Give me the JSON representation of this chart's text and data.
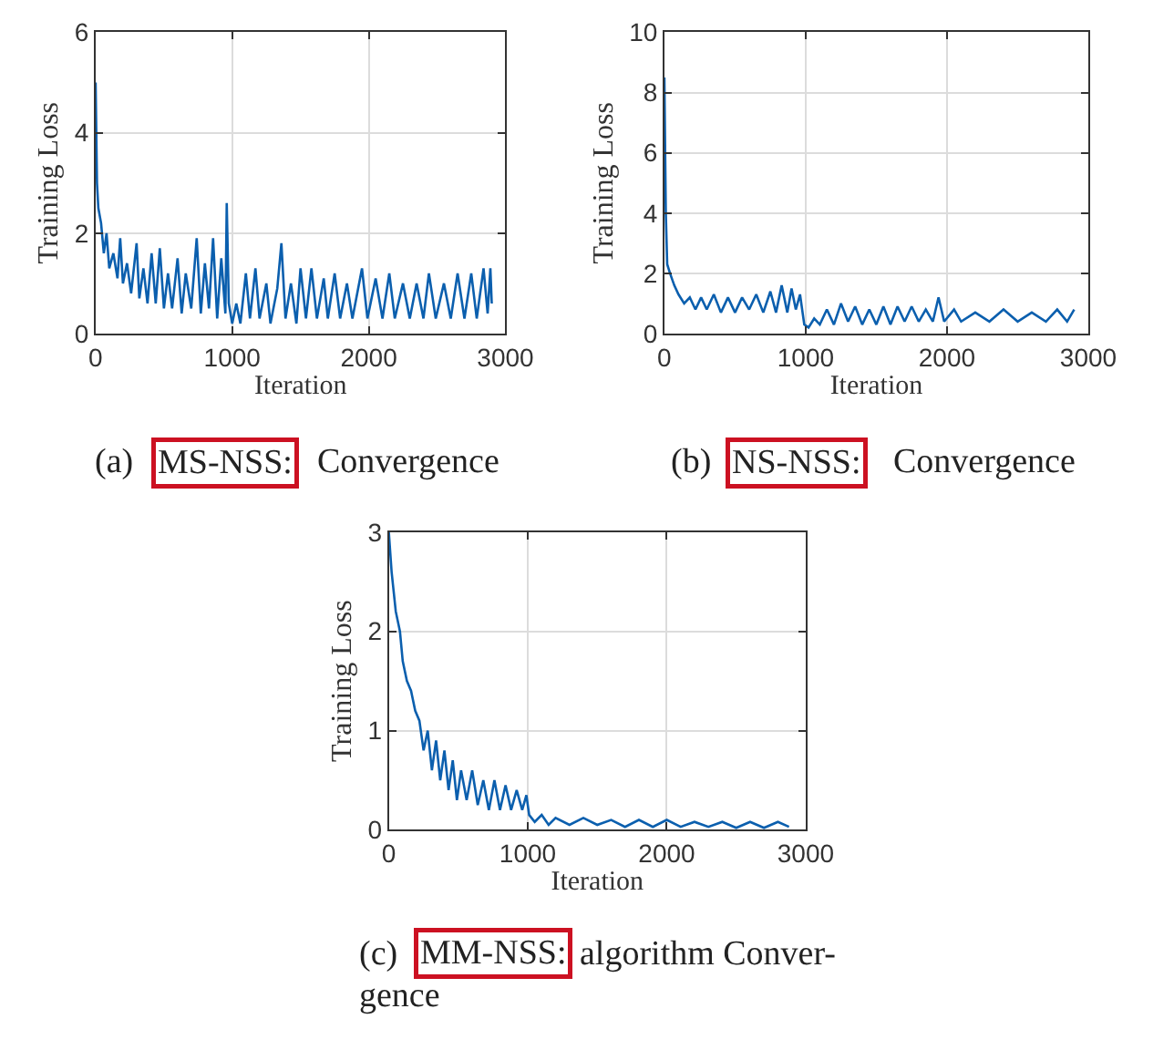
{
  "chart_data": [
    {
      "type": "line",
      "xlabel": "Iteration",
      "ylabel": "Training Loss",
      "color": "#0b5fae",
      "grid": true,
      "xlim": [
        0,
        3000
      ],
      "ylim": [
        0,
        6
      ],
      "xticks": [
        0,
        1000,
        2000,
        3000
      ],
      "yticks": [
        0,
        2,
        4,
        6
      ],
      "x": [
        0,
        10,
        20,
        40,
        60,
        80,
        100,
        130,
        160,
        180,
        200,
        230,
        260,
        300,
        320,
        350,
        380,
        410,
        440,
        470,
        500,
        530,
        560,
        600,
        630,
        660,
        700,
        740,
        770,
        800,
        830,
        860,
        890,
        920,
        950,
        960,
        975,
        1000,
        1030,
        1060,
        1100,
        1130,
        1170,
        1200,
        1250,
        1280,
        1330,
        1360,
        1390,
        1430,
        1470,
        1500,
        1540,
        1580,
        1620,
        1670,
        1700,
        1750,
        1790,
        1840,
        1880,
        1950,
        1990,
        2050,
        2100,
        2150,
        2190,
        2250,
        2300,
        2350,
        2400,
        2440,
        2490,
        2550,
        2600,
        2650,
        2700,
        2750,
        2790,
        2840,
        2870,
        2890,
        2900
      ],
      "values": [
        5.0,
        3.0,
        2.5,
        2.2,
        1.6,
        2.0,
        1.3,
        1.6,
        1.1,
        1.9,
        1.0,
        1.4,
        0.8,
        1.8,
        0.7,
        1.3,
        0.6,
        1.6,
        0.6,
        1.7,
        0.5,
        1.2,
        0.5,
        1.5,
        0.4,
        1.2,
        0.5,
        1.9,
        0.4,
        1.4,
        0.5,
        1.9,
        0.3,
        1.5,
        0.4,
        2.6,
        0.6,
        0.2,
        0.6,
        0.2,
        1.2,
        0.3,
        1.3,
        0.3,
        1.0,
        0.2,
        0.9,
        1.8,
        0.3,
        1.0,
        0.2,
        1.3,
        0.3,
        1.3,
        0.3,
        1.1,
        0.3,
        1.2,
        0.3,
        1.0,
        0.3,
        1.3,
        0.3,
        1.1,
        0.3,
        1.2,
        0.3,
        1.0,
        0.3,
        1.0,
        0.3,
        1.2,
        0.3,
        1.0,
        0.3,
        1.2,
        0.3,
        1.2,
        0.3,
        1.3,
        0.4,
        1.3,
        0.6
      ],
      "annotations": [
        "(a)",
        "MS-NSS:",
        "Convergence"
      ]
    },
    {
      "type": "line",
      "xlabel": "Iteration",
      "ylabel": "Training Loss",
      "color": "#0b5fae",
      "grid": true,
      "xlim": [
        0,
        3000
      ],
      "ylim": [
        0,
        10
      ],
      "xticks": [
        0,
        1000,
        2000,
        3000
      ],
      "yticks": [
        0,
        2,
        4,
        6,
        8,
        10
      ],
      "x": [
        0,
        10,
        20,
        40,
        70,
        100,
        140,
        180,
        220,
        260,
        300,
        350,
        400,
        450,
        500,
        550,
        600,
        650,
        700,
        750,
        790,
        830,
        870,
        900,
        930,
        960,
        990,
        1020,
        1060,
        1100,
        1150,
        1200,
        1250,
        1300,
        1350,
        1400,
        1450,
        1500,
        1550,
        1600,
        1650,
        1700,
        1750,
        1800,
        1850,
        1900,
        1940,
        1980,
        2050,
        2100,
        2200,
        2300,
        2400,
        2500,
        2600,
        2700,
        2780,
        2850,
        2900
      ],
      "values": [
        8.5,
        4.0,
        2.3,
        2.0,
        1.6,
        1.3,
        1.0,
        1.2,
        0.8,
        1.2,
        0.8,
        1.3,
        0.7,
        1.2,
        0.7,
        1.2,
        0.8,
        1.3,
        0.7,
        1.4,
        0.7,
        1.6,
        0.7,
        1.5,
        0.8,
        1.3,
        0.3,
        0.2,
        0.5,
        0.3,
        0.8,
        0.3,
        1.0,
        0.4,
        0.9,
        0.3,
        0.8,
        0.3,
        0.9,
        0.3,
        0.9,
        0.4,
        0.9,
        0.4,
        0.8,
        0.4,
        1.2,
        0.4,
        0.8,
        0.4,
        0.7,
        0.4,
        0.8,
        0.4,
        0.7,
        0.4,
        0.8,
        0.4,
        0.8
      ],
      "annotations": [
        "(b)",
        "NS-NSS:",
        "Convergence"
      ]
    },
    {
      "type": "line",
      "xlabel": "Iteration",
      "ylabel": "Training Loss",
      "color": "#0b5fae",
      "grid": true,
      "xlim": [
        0,
        3000
      ],
      "ylim": [
        0,
        3
      ],
      "xticks": [
        0,
        1000,
        2000,
        3000
      ],
      "yticks": [
        0,
        1,
        2,
        3
      ],
      "x": [
        0,
        20,
        50,
        80,
        100,
        130,
        160,
        190,
        220,
        250,
        280,
        310,
        340,
        370,
        400,
        430,
        460,
        490,
        520,
        560,
        600,
        640,
        680,
        720,
        760,
        800,
        840,
        880,
        920,
        960,
        990,
        1010,
        1050,
        1100,
        1150,
        1200,
        1300,
        1400,
        1500,
        1600,
        1700,
        1800,
        1900,
        2000,
        2100,
        2200,
        2300,
        2400,
        2500,
        2600,
        2700,
        2800,
        2880
      ],
      "values": [
        3.0,
        2.6,
        2.2,
        2.0,
        1.7,
        1.5,
        1.4,
        1.2,
        1.1,
        0.8,
        1.0,
        0.6,
        0.9,
        0.5,
        0.8,
        0.4,
        0.7,
        0.3,
        0.6,
        0.3,
        0.6,
        0.25,
        0.5,
        0.2,
        0.5,
        0.2,
        0.45,
        0.2,
        0.4,
        0.2,
        0.35,
        0.15,
        0.08,
        0.15,
        0.05,
        0.12,
        0.05,
        0.12,
        0.05,
        0.1,
        0.03,
        0.1,
        0.03,
        0.1,
        0.03,
        0.08,
        0.03,
        0.08,
        0.02,
        0.08,
        0.02,
        0.08,
        0.03
      ],
      "annotations": [
        "(c)",
        "MM-NSS:",
        "algorithm Conver-",
        "gence"
      ]
    }
  ]
}
